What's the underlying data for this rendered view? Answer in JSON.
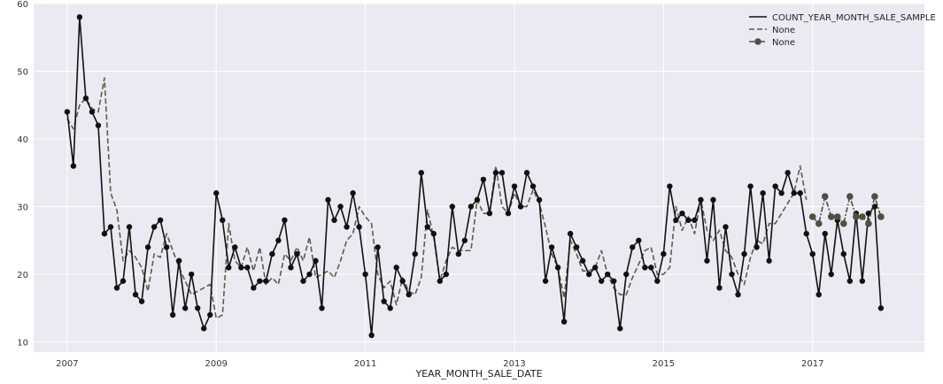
{
  "chart_data": {
    "type": "line",
    "xlabel": "YEAR_MONTH_SALE_DATE",
    "ylabel": "",
    "title": "",
    "x_ticks": [
      "2007",
      "2009",
      "2011",
      "2013",
      "2015",
      "2017"
    ],
    "y_ticks": [
      "10",
      "20",
      "30",
      "40",
      "50",
      "60"
    ],
    "xlim": [
      2006.55,
      2018.5
    ],
    "ylim": [
      8.5,
      60
    ],
    "grid": true,
    "legend_position": "top-right",
    "colors": {
      "background": "#eaeaf2",
      "grid": "#ffffff",
      "actual": "#111111",
      "fitted": "#55604a",
      "forecast": "#4a5240"
    },
    "series": [
      {
        "name": "COUNT_YEAR_MONTH_SALE_SAMPLE",
        "style": "solid-markers",
        "x_start": "2007-01",
        "values": [
          44,
          36,
          58,
          46,
          44,
          42,
          26,
          27,
          18,
          19,
          27,
          17,
          16,
          24,
          27,
          28,
          24,
          14,
          22,
          15,
          20,
          15,
          12,
          14,
          32,
          28,
          21,
          24,
          21,
          21,
          18,
          19,
          19,
          23,
          25,
          28,
          21,
          23,
          19,
          20,
          22,
          15,
          31,
          28,
          30,
          27,
          32,
          27,
          20,
          11,
          24,
          16,
          15,
          21,
          19,
          17,
          23,
          35,
          27,
          26,
          19,
          20,
          30,
          23,
          25,
          30,
          31,
          34,
          29,
          35,
          35,
          29,
          33,
          30,
          35,
          33,
          31,
          19,
          24,
          21,
          13,
          26,
          24,
          22,
          20,
          21,
          19,
          20,
          19,
          12,
          20,
          24,
          25,
          21,
          21,
          19,
          23,
          33,
          28,
          29,
          28,
          28,
          31,
          22,
          31,
          18,
          27,
          20,
          17,
          23,
          33,
          24,
          32,
          22,
          33,
          32,
          35,
          32,
          32,
          26,
          23,
          17,
          26,
          20,
          28,
          23,
          19,
          29,
          19,
          29,
          30,
          15
        ]
      },
      {
        "name": "None",
        "style": "dashed",
        "x_start": "2007-01",
        "values": [
          43,
          41.5,
          45,
          46,
          44.5,
          44,
          49,
          32,
          29.5,
          22,
          23.5,
          22.5,
          21,
          17.5,
          23,
          22.5,
          26,
          23.5,
          21,
          19,
          17,
          17.5,
          18,
          18.5,
          13.5,
          14,
          27.5,
          22,
          21,
          24,
          20.5,
          24,
          18.5,
          19.5,
          18.5,
          23,
          22,
          24,
          22,
          25.5,
          19.5,
          20,
          20.5,
          19.5,
          22,
          25,
          26,
          30,
          28.5,
          27.5,
          20,
          18,
          19,
          15.5,
          19.5,
          17.5,
          17,
          19.5,
          29.5,
          25.5,
          19,
          22,
          24,
          23.5,
          23.5,
          23.5,
          31,
          29,
          29,
          36,
          30,
          29,
          32,
          30,
          30,
          32.5,
          30.5,
          27,
          23,
          21,
          16.5,
          25,
          23,
          20.5,
          20.5,
          21,
          23.5,
          20,
          18,
          17,
          17,
          19.5,
          21.5,
          23.5,
          24,
          20,
          20,
          21,
          30,
          26.5,
          28.5,
          26,
          31,
          26.5,
          25,
          26.5,
          23.5,
          22.5,
          20,
          18.5,
          22.5,
          25,
          24.5,
          27.5,
          27.5,
          29,
          30.5,
          32,
          36,
          31
        ]
      },
      {
        "name": "None",
        "style": "dashdot-markers",
        "x_start": "2017-01",
        "values": [
          28.5,
          27.5,
          31.5,
          28.5,
          28.5,
          27.5,
          31.5,
          28.5,
          28.5,
          27.5,
          31.5,
          28.5
        ]
      }
    ]
  }
}
